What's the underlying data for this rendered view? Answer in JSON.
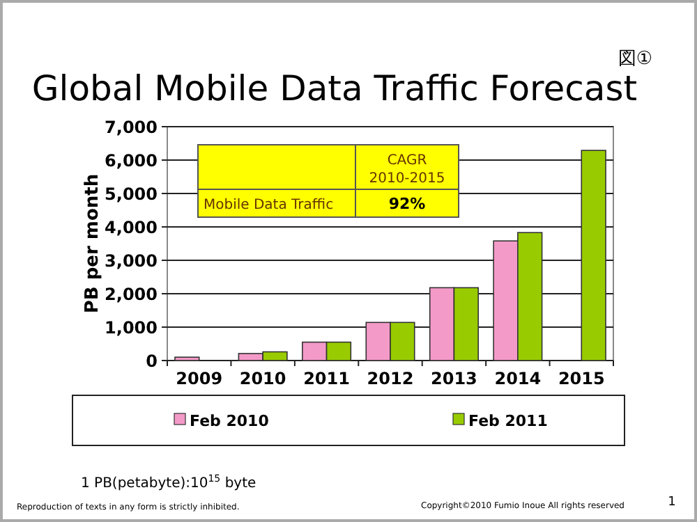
{
  "chart_data": {
    "type": "bar",
    "title": "Global Mobile Data Traffic Forecast",
    "ylabel": "PB per month",
    "categories": [
      "2009",
      "2010",
      "2011",
      "2012",
      "2013",
      "2014",
      "2015"
    ],
    "series": [
      {
        "name": "Feb 2010",
        "color": "#f49ac8",
        "values": [
          100,
          210,
          550,
          1140,
          2180,
          3580,
          null
        ]
      },
      {
        "name": "Feb 2011",
        "color": "#99cc00",
        "values": [
          null,
          260,
          550,
          1140,
          2180,
          3830,
          6290
        ]
      }
    ],
    "ylim": [
      0,
      7000
    ],
    "yticks": [
      {
        "value": 0,
        "label": "0"
      },
      {
        "value": 1000,
        "label": "1,000"
      },
      {
        "value": 2000,
        "label": "2,000"
      },
      {
        "value": 3000,
        "label": "3,000"
      },
      {
        "value": 4000,
        "label": "4,000"
      },
      {
        "value": 5000,
        "label": "5,000"
      },
      {
        "value": 6000,
        "label": "6,000"
      },
      {
        "value": 7000,
        "label": "7,000"
      }
    ],
    "grid": "y",
    "legend": "bottom",
    "annotations": [
      "図①",
      "CAGR",
      "2010-2015",
      "Mobile Data Traffic",
      "92%",
      "1 PB(petabyte):10$^{15}$ byte",
      "Reproduction of texts in any form is strictly inhibited.",
      "Copyright©2010 Fumio Inoue All rights reserved",
      "1"
    ]
  }
}
